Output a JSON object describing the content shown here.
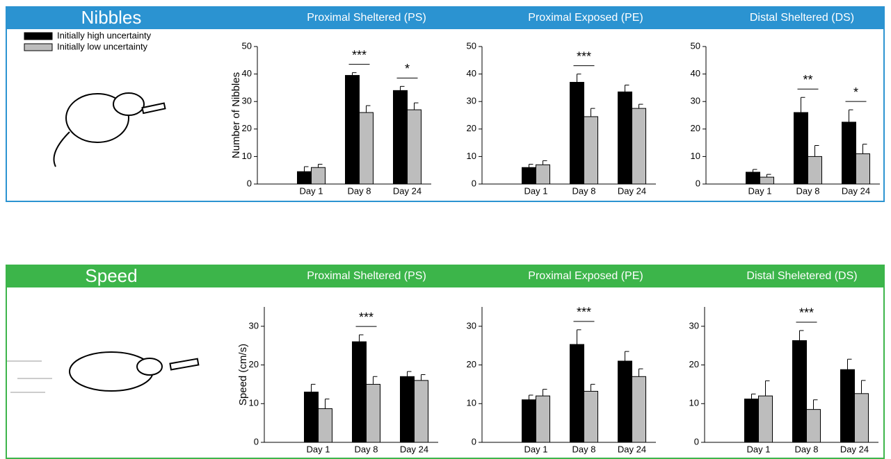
{
  "sections": [
    {
      "title": "Nibbles",
      "color": "#2b93d1"
    },
    {
      "title": "Speed",
      "color": "#3cb54a"
    }
  ],
  "legend": [
    {
      "name": "Initially high uncertainty",
      "color": "#000000"
    },
    {
      "name": "Initially low uncertainty",
      "color": "#bdbdbd"
    }
  ],
  "chart_data": [
    {
      "type": "bar",
      "title": "Proximal Sheltered (PS)",
      "ylabel": "Number of Nibbles",
      "categories": [
        "Day 1",
        "Day 8",
        "Day 24"
      ],
      "series": [
        {
          "values": [
            4.5,
            39.5,
            34
          ],
          "errors": [
            1.8,
            1,
            1.5
          ]
        },
        {
          "values": [
            6,
            26,
            27
          ],
          "errors": [
            1.2,
            2.5,
            2.5
          ]
        }
      ],
      "ylim": [
        0,
        50
      ],
      "yticks": [
        0,
        10,
        20,
        30,
        40,
        50
      ],
      "annotations": [
        {
          "at": 1,
          "text": "***"
        },
        {
          "at": 2,
          "text": "*"
        }
      ]
    },
    {
      "type": "bar",
      "title": "Proximal Exposed (PE)",
      "categories": [
        "Day 1",
        "Day 8",
        "Day 24"
      ],
      "series": [
        {
          "values": [
            6,
            37,
            33.5
          ],
          "errors": [
            1.2,
            3,
            2.5
          ]
        },
        {
          "values": [
            7,
            24.5,
            27.5
          ],
          "errors": [
            1.5,
            3,
            1.5
          ]
        }
      ],
      "ylim": [
        0,
        50
      ],
      "yticks": [
        0,
        10,
        20,
        30,
        40,
        50
      ],
      "annotations": [
        {
          "at": 1,
          "text": "***"
        }
      ]
    },
    {
      "type": "bar",
      "title": "Distal Sheltered (DS)",
      "categories": [
        "Day 1",
        "Day 8",
        "Day 24"
      ],
      "series": [
        {
          "values": [
            4.3,
            26,
            22.5
          ],
          "errors": [
            1,
            5.5,
            4.5
          ]
        },
        {
          "values": [
            2.5,
            10,
            11
          ],
          "errors": [
            1,
            4,
            3.5
          ]
        }
      ],
      "ylim": [
        0,
        50
      ],
      "yticks": [
        0,
        10,
        20,
        30,
        40,
        50
      ],
      "annotations": [
        {
          "at": 1,
          "text": "**"
        },
        {
          "at": 2,
          "text": "*"
        }
      ]
    },
    {
      "type": "bar",
      "title": "Proximal Sheltered (PS)",
      "ylabel": "Speed (cm/s)",
      "categories": [
        "Day 1",
        "Day 8",
        "Day 24"
      ],
      "series": [
        {
          "values": [
            13,
            26,
            17
          ],
          "errors": [
            2,
            1.8,
            1.3
          ]
        },
        {
          "values": [
            8.7,
            15,
            16
          ],
          "errors": [
            2.5,
            2,
            1.5
          ]
        }
      ],
      "ylim": [
        0,
        35
      ],
      "yticks": [
        0,
        10,
        20,
        30
      ],
      "annotations": [
        {
          "at": 1,
          "text": "***"
        }
      ]
    },
    {
      "type": "bar",
      "title": "Proximal Exposed (PE)",
      "categories": [
        "Day 1",
        "Day 8",
        "Day 24"
      ],
      "series": [
        {
          "values": [
            11,
            25.3,
            21
          ],
          "errors": [
            1.2,
            3.8,
            2.5
          ]
        },
        {
          "values": [
            12,
            13.2,
            17
          ],
          "errors": [
            1.7,
            1.8,
            2
          ]
        }
      ],
      "ylim": [
        0,
        35
      ],
      "yticks": [
        0,
        10,
        20,
        30
      ],
      "annotations": [
        {
          "at": 1,
          "text": "***"
        }
      ]
    },
    {
      "type": "bar",
      "title": "Distal Sheletered (DS)",
      "categories": [
        "Day 1",
        "Day 8",
        "Day 24"
      ],
      "series": [
        {
          "values": [
            11.2,
            26.3,
            18.8
          ],
          "errors": [
            1.3,
            2.6,
            2.7
          ]
        },
        {
          "values": [
            12,
            8.5,
            12.6
          ],
          "errors": [
            3.9,
            2.5,
            3.4
          ]
        }
      ],
      "ylim": [
        0,
        35
      ],
      "yticks": [
        0,
        10,
        20,
        30
      ],
      "annotations": [
        {
          "at": 1,
          "text": "***"
        }
      ]
    }
  ]
}
